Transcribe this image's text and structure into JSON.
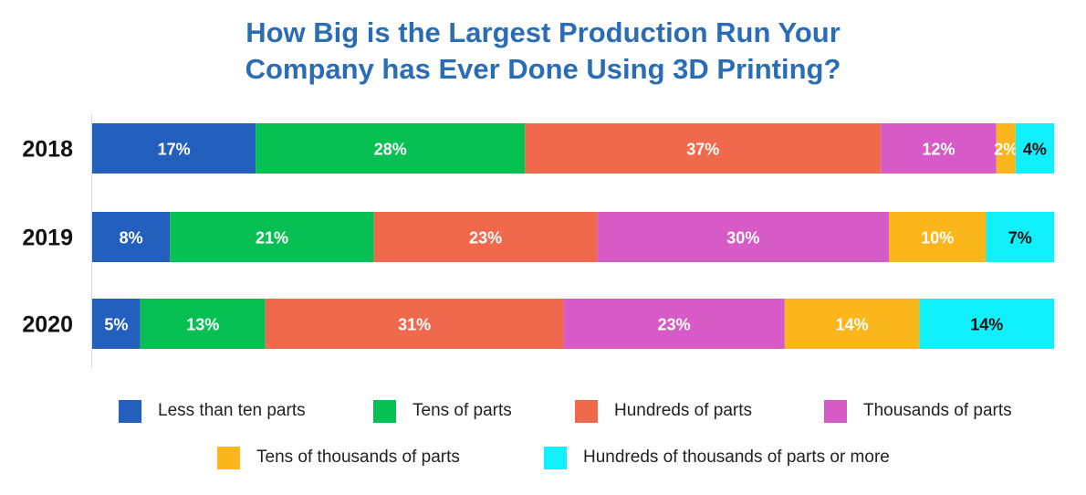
{
  "title_line1": "How Big is the Largest Production Run Your",
  "title_line2": "Company has Ever Done Using 3D Printing?",
  "chart_data": {
    "type": "bar",
    "orientation": "horizontal",
    "stacked": true,
    "categories": [
      "2018",
      "2019",
      "2020"
    ],
    "series": [
      {
        "name": "Less than ten parts",
        "color": "#2360bd",
        "values": [
          17,
          8,
          5
        ],
        "labels": [
          "17%",
          "8%",
          "5%"
        ]
      },
      {
        "name": "Tens of parts",
        "color": "#07c054",
        "values": [
          28,
          21,
          13
        ],
        "labels": [
          "28%",
          "21%",
          "13%"
        ]
      },
      {
        "name": "Hundreds of parts",
        "color": "#f0694c",
        "values": [
          37,
          23,
          31
        ],
        "labels": [
          "37%",
          "23%",
          "31%"
        ]
      },
      {
        "name": "Thousands of parts",
        "color": "#d75bc6",
        "values": [
          12,
          30,
          23
        ],
        "labels": [
          "12%",
          "30%",
          "23%"
        ]
      },
      {
        "name": "Tens of thousands of parts",
        "color": "#fbb61b",
        "values": [
          2,
          10,
          14
        ],
        "labels": [
          "2%",
          "10%",
          "14%"
        ]
      },
      {
        "name": "Hundreds of thousands of parts or more",
        "color": "#0ff0fa",
        "values": [
          4,
          7,
          14
        ],
        "labels": [
          "4%",
          "7%",
          "14%"
        ]
      }
    ],
    "legend_position": "bottom",
    "grid": false
  }
}
